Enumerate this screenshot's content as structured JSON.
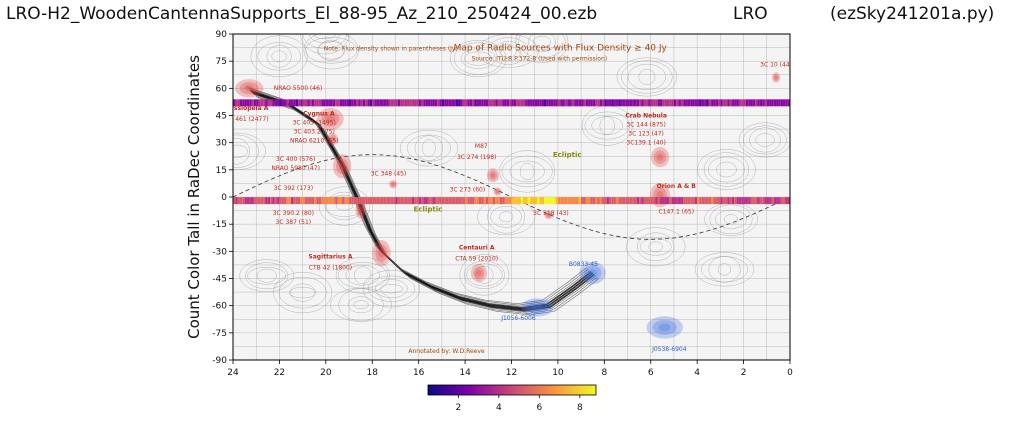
{
  "header": {
    "title": "LRO-H2_WoodenCantennaSupports_El_88-95_Az_210_250424_00.ezb",
    "station": "LRO",
    "program": "(ezSky241201a.py)"
  },
  "chart_data": {
    "type": "heatmap",
    "title": "LRO-H2_WoodenCantennaSupports_El_88-95_Az_210_250424_00.ezb",
    "ylabel": "Count Color Tall in RaDec Coordinates",
    "xlabel": "",
    "xlim": [
      24,
      0
    ],
    "ylim": [
      -90,
      90
    ],
    "x_ticks": [
      24,
      22,
      20,
      18,
      16,
      14,
      12,
      10,
      8,
      6,
      4,
      2,
      0
    ],
    "y_ticks": [
      90,
      75,
      60,
      45,
      30,
      15,
      0,
      -15,
      -30,
      -45,
      -60,
      -75,
      -90
    ],
    "colorbar": {
      "ticks": [
        2,
        4,
        6,
        8
      ],
      "range": [
        0.5,
        8.8
      ],
      "colormap": "plasma"
    },
    "series": [
      {
        "dec": 52,
        "intensity": [
          3.2,
          3.4,
          2.8,
          3.6,
          3.1,
          2.9,
          3.5,
          4.1,
          3.3,
          2.7,
          3.0,
          3.8,
          3.6,
          2.9,
          3.1,
          3.4,
          2.8,
          3.2,
          3.7,
          3.0,
          2.9,
          3.3,
          3.5,
          3.1
        ]
      },
      {
        "dec": -2,
        "intensity": [
          4.6,
          4.9,
          5.2,
          5.5,
          6.1,
          5.8,
          5.4,
          5.0,
          4.7,
          5.1,
          5.6,
          6.3,
          7.9,
          8.4,
          6.8,
          5.7,
          5.2,
          4.8,
          4.5,
          4.9,
          5.3,
          4.7,
          4.4,
          4.6
        ]
      }
    ],
    "background_map": {
      "title": "Map of Radio Sources with Flux Density ≥ 40 Jy",
      "source": "Source: ITU-R P.372-8 (Used with permission)",
      "note": "Note: Flux density shown in parentheses (Jy)",
      "credit": "Annotated by: W.D.Reeve",
      "labels": [
        {
          "text": "Cassiopeia A",
          "ra": 23.4,
          "dec": 48,
          "kind": "bold"
        },
        {
          "text": "3C 461 (2477)",
          "ra": 23.4,
          "dec": 42,
          "kind": "red"
        },
        {
          "text": "NRAO 5500 (46)",
          "ra": 21.2,
          "dec": 59,
          "kind": "red"
        },
        {
          "text": "Cygnus A",
          "ra": 20.3,
          "dec": 45,
          "kind": "bold"
        },
        {
          "text": "3C 405 (1495)",
          "ra": 20.5,
          "dec": 40,
          "kind": "red"
        },
        {
          "text": "3C 403.2 (75)",
          "ra": 20.5,
          "dec": 35,
          "kind": "red"
        },
        {
          "text": "NRAO 6210 (55)",
          "ra": 20.5,
          "dec": 30,
          "kind": "red"
        },
        {
          "text": "3C 400 (576)",
          "ra": 21.3,
          "dec": 20,
          "kind": "red"
        },
        {
          "text": "NRAO 5980 (47)",
          "ra": 21.3,
          "dec": 15,
          "kind": "red"
        },
        {
          "text": "3C 348 (45)",
          "ra": 17.3,
          "dec": 12,
          "kind": "red"
        },
        {
          "text": "3C 392 (173)",
          "ra": 21.4,
          "dec": 4,
          "kind": "red"
        },
        {
          "text": "3C 390.2 (80)",
          "ra": 21.4,
          "dec": -10,
          "kind": "red"
        },
        {
          "text": "3C 387 (51)",
          "ra": 21.4,
          "dec": -15,
          "kind": "red"
        },
        {
          "text": "Sagittarius A",
          "ra": 19.8,
          "dec": -34,
          "kind": "bold"
        },
        {
          "text": "CTB 42 (1800)",
          "ra": 19.8,
          "dec": -40,
          "kind": "red"
        },
        {
          "text": "M87",
          "ra": 13.3,
          "dec": 27,
          "kind": "red"
        },
        {
          "text": "3C 274 (198)",
          "ra": 13.5,
          "dec": 21,
          "kind": "red"
        },
        {
          "text": "3C 273 (60)",
          "ra": 13.9,
          "dec": 3,
          "kind": "red"
        },
        {
          "text": "3C 218 (43)",
          "ra": 10.3,
          "dec": -10,
          "kind": "red"
        },
        {
          "text": "Centauri A",
          "ra": 13.5,
          "dec": -29,
          "kind": "bold"
        },
        {
          "text": "CTA 59 (2010)",
          "ra": 13.5,
          "dec": -35,
          "kind": "red"
        },
        {
          "text": "Crab Nebula",
          "ra": 6.2,
          "dec": 44,
          "kind": "bold"
        },
        {
          "text": "3C 144 (875)",
          "ra": 6.2,
          "dec": 39,
          "kind": "red"
        },
        {
          "text": "3C 123 (47)",
          "ra": 6.2,
          "dec": 34,
          "kind": "red"
        },
        {
          "text": "3C139.1 (40)",
          "ra": 6.2,
          "dec": 29,
          "kind": "red"
        },
        {
          "text": "Orion A & B",
          "ra": 4.9,
          "dec": 5,
          "kind": "bold"
        },
        {
          "text": "C147.1 (65)",
          "ra": 4.9,
          "dec": -9,
          "kind": "red"
        },
        {
          "text": "3C 10 (44)",
          "ra": 0.6,
          "dec": 72,
          "kind": "red"
        },
        {
          "text": "B0833-45",
          "ra": 8.9,
          "dec": -38,
          "kind": "blue"
        },
        {
          "text": "J1056-6006",
          "ra": 11.7,
          "dec": -68,
          "kind": "blue"
        },
        {
          "text": "J0538-6904",
          "ra": 5.2,
          "dec": -85,
          "kind": "blue"
        },
        {
          "text": "Ecliptic",
          "ra": 9.6,
          "dec": 22,
          "kind": "olive"
        },
        {
          "text": "Ecliptic",
          "ra": 15.6,
          "dec": -8,
          "kind": "olive"
        }
      ]
    }
  }
}
